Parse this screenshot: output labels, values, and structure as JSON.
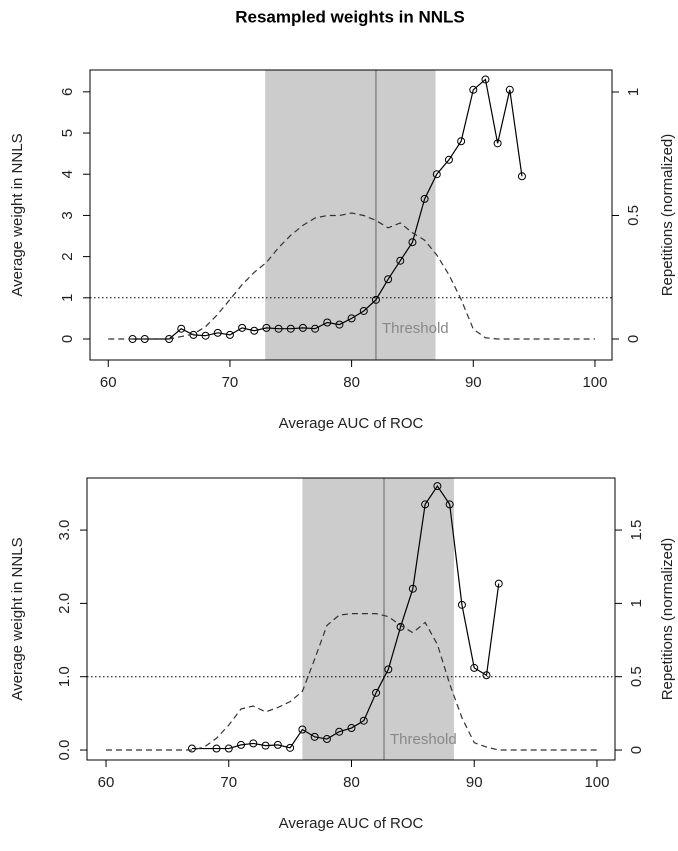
{
  "chart_data": [
    {
      "type": "line",
      "title": "Resampled weights in NNLS",
      "xlabel": "Average AUC of ROC",
      "ylabel": "Average weight in NNLS",
      "y2label": "Repetitions (normalized)",
      "xlim": [
        58.5,
        101.4
      ],
      "xticks": [
        60,
        70,
        80,
        90,
        100
      ],
      "ylim": [
        -0.51,
        6.53
      ],
      "yticks": [
        0,
        1,
        2,
        3,
        4,
        5,
        6
      ],
      "y2lim": [
        -0.085,
        1.089
      ],
      "y2ticks": [
        0,
        0.5,
        1
      ],
      "threshold_band": [
        72.9,
        86.9
      ],
      "threshold_line": 82,
      "hline": 1,
      "annotation": "Threshold",
      "series": [
        {
          "color": "#000000",
          "marker": "circle",
          "x": [
            62,
            63,
            65,
            66,
            67,
            68,
            69,
            70,
            71,
            72,
            73,
            74,
            75,
            76,
            77,
            78,
            79,
            80,
            81,
            82,
            83,
            84,
            85,
            86,
            87,
            88,
            89,
            90,
            91,
            92,
            93,
            94
          ],
          "values": [
            0,
            0,
            0,
            0.25,
            0.1,
            0.08,
            0.15,
            0.1,
            0.27,
            0.2,
            0.27,
            0.25,
            0.25,
            0.27,
            0.25,
            0.4,
            0.35,
            0.5,
            0.68,
            0.95,
            1.45,
            1.9,
            2.35,
            3.4,
            4.0,
            4.35,
            4.8,
            6.05,
            6.3,
            4.75,
            6.05,
            3.95
          ]
        },
        {
          "color": "#333333",
          "dash": true,
          "axis": "y2",
          "x": [
            60,
            65,
            66,
            67,
            68,
            69,
            70,
            71,
            72,
            73,
            74,
            75,
            76,
            77,
            78,
            79,
            80,
            81,
            82,
            83,
            84,
            85,
            86,
            87,
            88,
            89,
            90,
            91,
            92,
            100
          ],
          "values": [
            0,
            0,
            0.01,
            0.02,
            0.05,
            0.1,
            0.16,
            0.22,
            0.27,
            0.31,
            0.37,
            0.42,
            0.46,
            0.49,
            0.5,
            0.5,
            0.51,
            0.5,
            0.48,
            0.45,
            0.47,
            0.43,
            0.4,
            0.34,
            0.26,
            0.16,
            0.04,
            0.005,
            0,
            0
          ]
        }
      ]
    },
    {
      "type": "line",
      "xlabel": "Average AUC of ROC",
      "ylabel": "Average weight in NNLS",
      "y2label": "Repetitions (normalized)",
      "xlim": [
        58.45,
        101.47
      ],
      "xticks": [
        60,
        70,
        80,
        90,
        100
      ],
      "ylim": [
        -0.136,
        3.71
      ],
      "yticks": [
        {
          "value": 0,
          "label": "0.0"
        },
        {
          "value": 1,
          "label": "1.0"
        },
        {
          "value": 2,
          "label": "2.0"
        },
        {
          "value": 3,
          "label": "3.0"
        }
      ],
      "y2lim": [
        -0.068,
        1.855
      ],
      "y2ticks": [
        0,
        0.5,
        1,
        1.5
      ],
      "threshold_band": [
        76,
        88.35
      ],
      "threshold_line": 82.65,
      "hline": 1,
      "annotation": "Threshold",
      "series": [
        {
          "color": "#000000",
          "marker": "circle",
          "x": [
            67,
            69,
            70,
            71,
            72,
            73,
            74,
            75,
            76,
            77,
            78,
            79,
            80,
            81,
            82,
            83,
            84,
            85,
            86,
            87,
            88,
            89,
            90,
            91,
            92
          ],
          "values": [
            0.02,
            0.02,
            0.02,
            0.07,
            0.09,
            0.06,
            0.07,
            0.03,
            0.28,
            0.18,
            0.15,
            0.25,
            0.3,
            0.4,
            0.78,
            1.1,
            1.68,
            2.2,
            3.35,
            3.6,
            3.35,
            1.98,
            1.12,
            1.02,
            2.27
          ]
        },
        {
          "color": "#333333",
          "dash": true,
          "axis": "y2",
          "x": [
            60,
            67,
            68,
            69,
            70,
            71,
            72,
            73,
            74,
            75,
            76,
            77,
            78,
            79,
            80,
            81,
            82,
            83,
            84,
            85,
            86,
            87,
            88,
            89,
            90,
            91,
            92,
            100
          ],
          "values": [
            0,
            0,
            0.02,
            0.08,
            0.17,
            0.28,
            0.3,
            0.26,
            0.29,
            0.33,
            0.4,
            0.62,
            0.85,
            0.92,
            0.93,
            0.93,
            0.93,
            0.91,
            0.85,
            0.8,
            0.87,
            0.72,
            0.45,
            0.22,
            0.05,
            0.02,
            0,
            0
          ]
        }
      ]
    }
  ]
}
